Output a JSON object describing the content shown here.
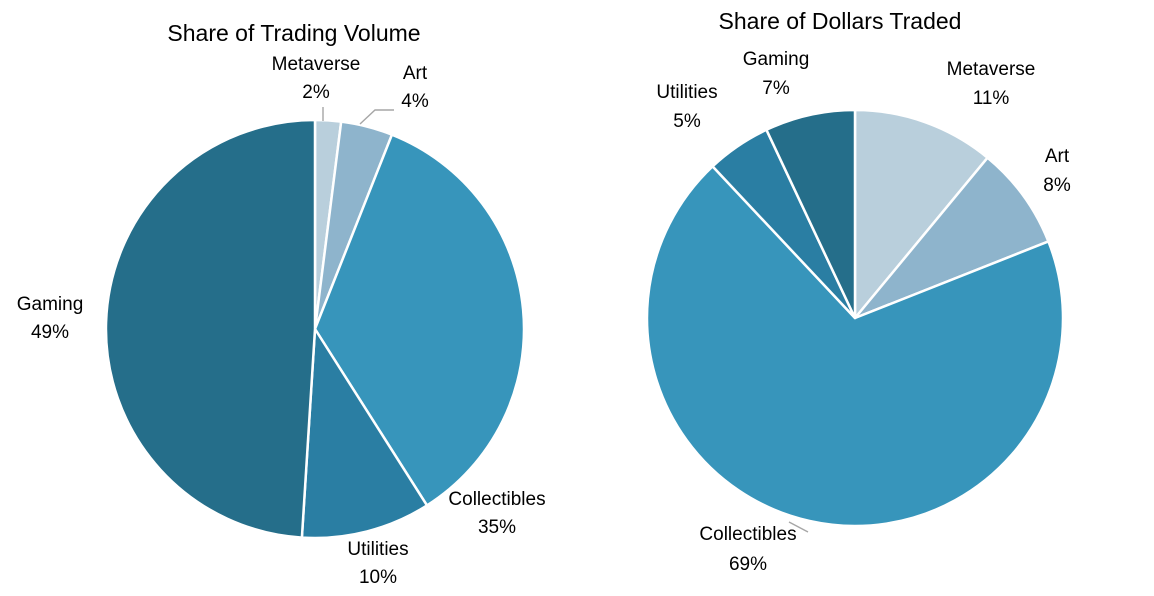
{
  "chart_data": [
    {
      "type": "pie",
      "title": "Share of Trading Volume",
      "slices": [
        {
          "name": "Metaverse",
          "value": 2,
          "label": "2%",
          "color": "#b9cfdc"
        },
        {
          "name": "Art",
          "value": 4,
          "label": "4%",
          "color": "#8eb4cc"
        },
        {
          "name": "Collectibles",
          "value": 35,
          "label": "35%",
          "color": "#3795bb"
        },
        {
          "name": "Utilities",
          "value": 10,
          "label": "10%",
          "color": "#2a7ea3"
        },
        {
          "name": "Gaming",
          "value": 49,
          "label": "49%",
          "color": "#256e8a"
        }
      ]
    },
    {
      "type": "pie",
      "title": "Share of Dollars Traded",
      "slices": [
        {
          "name": "Metaverse",
          "value": 11,
          "label": "11%",
          "color": "#b9cfdc"
        },
        {
          "name": "Art",
          "value": 8,
          "label": "8%",
          "color": "#8eb4cc"
        },
        {
          "name": "Collectibles",
          "value": 69,
          "label": "69%",
          "color": "#3795bb"
        },
        {
          "name": "Utilities",
          "value": 5,
          "label": "5%",
          "color": "#2a7ea3"
        },
        {
          "name": "Gaming",
          "value": 7,
          "label": "7%",
          "color": "#256e8a"
        }
      ]
    }
  ]
}
